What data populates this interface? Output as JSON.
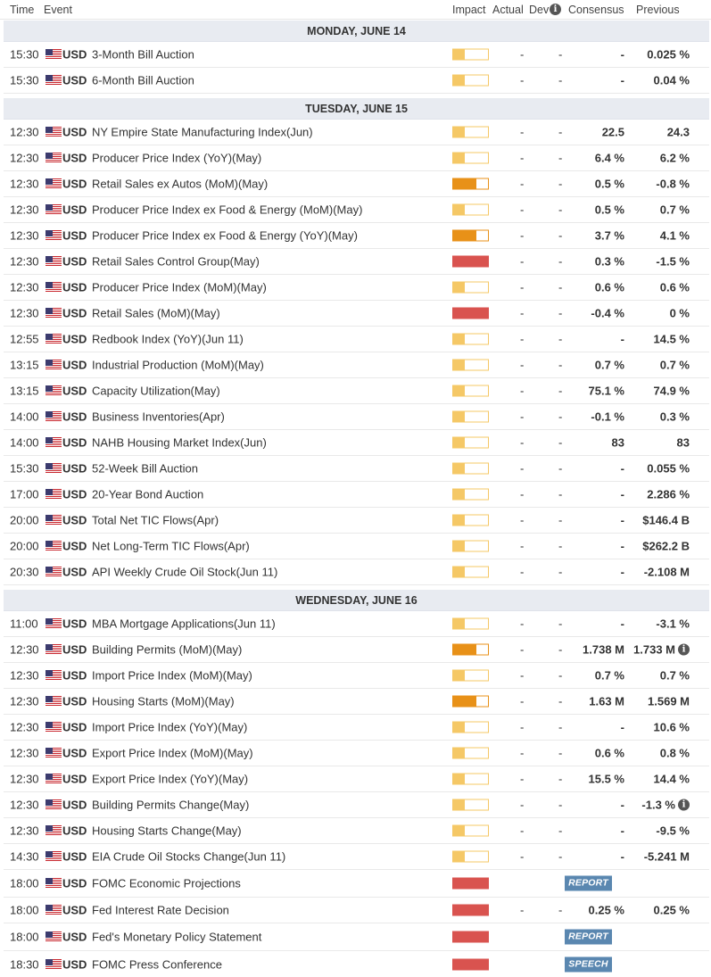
{
  "header": {
    "time": "Time",
    "event": "Event",
    "impact": "Impact",
    "actual": "Actual",
    "dev": "Dev",
    "consensus": "Consensus",
    "previous": "Previous"
  },
  "impact_colors": {
    "low": "#f5c866",
    "medium": "#e89118",
    "high": "#d9534f"
  },
  "days": [
    {
      "label": "MONDAY, JUNE 14",
      "events": [
        {
          "time": "15:30",
          "currency": "USD",
          "event": "3-Month Bill Auction",
          "impact": "low",
          "actual": "-",
          "dev": "-",
          "consensus": "-",
          "previous": "0.025 %"
        },
        {
          "time": "15:30",
          "currency": "USD",
          "event": "6-Month Bill Auction",
          "impact": "low",
          "actual": "-",
          "dev": "-",
          "consensus": "-",
          "previous": "0.04 %"
        }
      ]
    },
    {
      "label": "TUESDAY, JUNE 15",
      "events": [
        {
          "time": "12:30",
          "currency": "USD",
          "event": "NY Empire State Manufacturing Index(Jun)",
          "impact": "low",
          "actual": "-",
          "dev": "-",
          "consensus": "22.5",
          "previous": "24.3"
        },
        {
          "time": "12:30",
          "currency": "USD",
          "event": "Producer Price Index (YoY)(May)",
          "impact": "low",
          "actual": "-",
          "dev": "-",
          "consensus": "6.4 %",
          "previous": "6.2 %"
        },
        {
          "time": "12:30",
          "currency": "USD",
          "event": "Retail Sales ex Autos (MoM)(May)",
          "impact": "medium",
          "actual": "-",
          "dev": "-",
          "consensus": "0.5 %",
          "previous": "-0.8 %"
        },
        {
          "time": "12:30",
          "currency": "USD",
          "event": "Producer Price Index ex Food & Energy (MoM)(May)",
          "impact": "low",
          "actual": "-",
          "dev": "-",
          "consensus": "0.5 %",
          "previous": "0.7 %"
        },
        {
          "time": "12:30",
          "currency": "USD",
          "event": "Producer Price Index ex Food & Energy (YoY)(May)",
          "impact": "medium",
          "actual": "-",
          "dev": "-",
          "consensus": "3.7 %",
          "previous": "4.1 %"
        },
        {
          "time": "12:30",
          "currency": "USD",
          "event": "Retail Sales Control Group(May)",
          "impact": "high",
          "actual": "-",
          "dev": "-",
          "consensus": "0.3 %",
          "previous": "-1.5 %"
        },
        {
          "time": "12:30",
          "currency": "USD",
          "event": "Producer Price Index (MoM)(May)",
          "impact": "low",
          "actual": "-",
          "dev": "-",
          "consensus": "0.6 %",
          "previous": "0.6 %"
        },
        {
          "time": "12:30",
          "currency": "USD",
          "event": "Retail Sales (MoM)(May)",
          "impact": "high",
          "actual": "-",
          "dev": "-",
          "consensus": "-0.4 %",
          "previous": "0 %"
        },
        {
          "time": "12:55",
          "currency": "USD",
          "event": "Redbook Index (YoY)(Jun 11)",
          "impact": "low",
          "actual": "-",
          "dev": "-",
          "consensus": "-",
          "previous": "14.5 %"
        },
        {
          "time": "13:15",
          "currency": "USD",
          "event": "Industrial Production (MoM)(May)",
          "impact": "low",
          "actual": "-",
          "dev": "-",
          "consensus": "0.7 %",
          "previous": "0.7 %"
        },
        {
          "time": "13:15",
          "currency": "USD",
          "event": "Capacity Utilization(May)",
          "impact": "low",
          "actual": "-",
          "dev": "-",
          "consensus": "75.1 %",
          "previous": "74.9 %"
        },
        {
          "time": "14:00",
          "currency": "USD",
          "event": "Business Inventories(Apr)",
          "impact": "low",
          "actual": "-",
          "dev": "-",
          "consensus": "-0.1 %",
          "previous": "0.3 %"
        },
        {
          "time": "14:00",
          "currency": "USD",
          "event": "NAHB Housing Market Index(Jun)",
          "impact": "low",
          "actual": "-",
          "dev": "-",
          "consensus": "83",
          "previous": "83"
        },
        {
          "time": "15:30",
          "currency": "USD",
          "event": "52-Week Bill Auction",
          "impact": "low",
          "actual": "-",
          "dev": "-",
          "consensus": "-",
          "previous": "0.055 %"
        },
        {
          "time": "17:00",
          "currency": "USD",
          "event": "20-Year Bond Auction",
          "impact": "low",
          "actual": "-",
          "dev": "-",
          "consensus": "-",
          "previous": "2.286 %"
        },
        {
          "time": "20:00",
          "currency": "USD",
          "event": "Total Net TIC Flows(Apr)",
          "impact": "low",
          "actual": "-",
          "dev": "-",
          "consensus": "-",
          "previous": "$146.4 B"
        },
        {
          "time": "20:00",
          "currency": "USD",
          "event": "Net Long-Term TIC Flows(Apr)",
          "impact": "low",
          "actual": "-",
          "dev": "-",
          "consensus": "-",
          "previous": "$262.2 B"
        },
        {
          "time": "20:30",
          "currency": "USD",
          "event": "API Weekly Crude Oil Stock(Jun 11)",
          "impact": "low",
          "actual": "-",
          "dev": "-",
          "consensus": "-",
          "previous": "-2.108 M"
        }
      ]
    },
    {
      "label": "WEDNESDAY, JUNE 16",
      "events": [
        {
          "time": "11:00",
          "currency": "USD",
          "event": "MBA Mortgage Applications(Jun 11)",
          "impact": "low",
          "actual": "-",
          "dev": "-",
          "consensus": "-",
          "previous": "-3.1 %"
        },
        {
          "time": "12:30",
          "currency": "USD",
          "event": "Building Permits (MoM)(May)",
          "impact": "medium",
          "actual": "-",
          "dev": "-",
          "consensus": "1.738 M",
          "previous": "1.733 M",
          "info": true
        },
        {
          "time": "12:30",
          "currency": "USD",
          "event": "Import Price Index (MoM)(May)",
          "impact": "low",
          "actual": "-",
          "dev": "-",
          "consensus": "0.7 %",
          "previous": "0.7 %"
        },
        {
          "time": "12:30",
          "currency": "USD",
          "event": "Housing Starts (MoM)(May)",
          "impact": "medium",
          "actual": "-",
          "dev": "-",
          "consensus": "1.63 M",
          "previous": "1.569 M"
        },
        {
          "time": "12:30",
          "currency": "USD",
          "event": "Import Price Index (YoY)(May)",
          "impact": "low",
          "actual": "-",
          "dev": "-",
          "consensus": "-",
          "previous": "10.6 %"
        },
        {
          "time": "12:30",
          "currency": "USD",
          "event": "Export Price Index (MoM)(May)",
          "impact": "low",
          "actual": "-",
          "dev": "-",
          "consensus": "0.6 %",
          "previous": "0.8 %"
        },
        {
          "time": "12:30",
          "currency": "USD",
          "event": "Export Price Index (YoY)(May)",
          "impact": "low",
          "actual": "-",
          "dev": "-",
          "consensus": "15.5 %",
          "previous": "14.4 %"
        },
        {
          "time": "12:30",
          "currency": "USD",
          "event": "Building Permits Change(May)",
          "impact": "low",
          "actual": "-",
          "dev": "-",
          "consensus": "-",
          "previous": "-1.3 %",
          "info": true
        },
        {
          "time": "12:30",
          "currency": "USD",
          "event": "Housing Starts Change(May)",
          "impact": "low",
          "actual": "-",
          "dev": "-",
          "consensus": "-",
          "previous": "-9.5 %"
        },
        {
          "time": "14:30",
          "currency": "USD",
          "event": "EIA Crude Oil Stocks Change(Jun 11)",
          "impact": "low",
          "actual": "-",
          "dev": "-",
          "consensus": "-",
          "previous": "-5.241 M"
        },
        {
          "time": "18:00",
          "currency": "USD",
          "event": "FOMC Economic Projections",
          "impact": "high",
          "badge": "REPORT"
        },
        {
          "time": "18:00",
          "currency": "USD",
          "event": "Fed Interest Rate Decision",
          "impact": "high",
          "actual": "-",
          "dev": "-",
          "consensus": "0.25 %",
          "previous": "0.25 %"
        },
        {
          "time": "18:00",
          "currency": "USD",
          "event": "Fed's Monetary Policy Statement",
          "impact": "high",
          "badge": "REPORT"
        },
        {
          "time": "18:30",
          "currency": "USD",
          "event": "FOMC Press Conference",
          "impact": "high",
          "badge": "SPEECH"
        }
      ]
    }
  ]
}
